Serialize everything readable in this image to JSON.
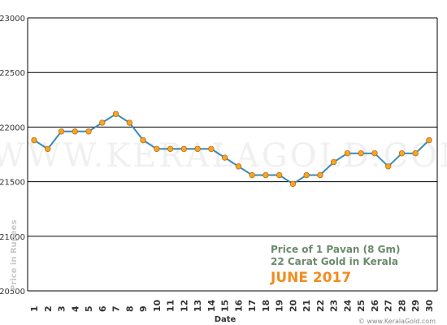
{
  "chart_data": {
    "type": "line",
    "x": [
      1,
      2,
      3,
      4,
      5,
      6,
      7,
      8,
      9,
      10,
      11,
      12,
      13,
      14,
      15,
      16,
      17,
      18,
      19,
      20,
      21,
      22,
      23,
      24,
      25,
      26,
      27,
      28,
      29,
      30
    ],
    "series": [
      {
        "values": [
          21880,
          21800,
          21960,
          21960,
          21960,
          22040,
          22120,
          22040,
          21880,
          21800,
          21800,
          21800,
          21800,
          21800,
          21720,
          21640,
          21560,
          21560,
          21560,
          21480,
          21560,
          21560,
          21680,
          21760,
          21760,
          21760,
          21640,
          21760,
          21760,
          21880
        ]
      }
    ],
    "ylim": [
      20500,
      23000
    ],
    "yticks": [
      20500,
      21000,
      21500,
      22000,
      22500,
      23000
    ],
    "xlabel": "Date",
    "ylabel": "Price in Rupees",
    "grid": true,
    "colors": {
      "line": "#3a8ab5",
      "marker": "#f5a623",
      "marker_stroke": "#c06a10",
      "grid": "#000000"
    }
  },
  "watermark": "WWW.KERALAGOLD.COM",
  "info": {
    "line1": "Price of 1 Pavan (8 Gm)",
    "line2": "22 Carat Gold in Kerala",
    "line3": "JUNE 2017"
  },
  "credit": "© www.KeralaGold.com"
}
